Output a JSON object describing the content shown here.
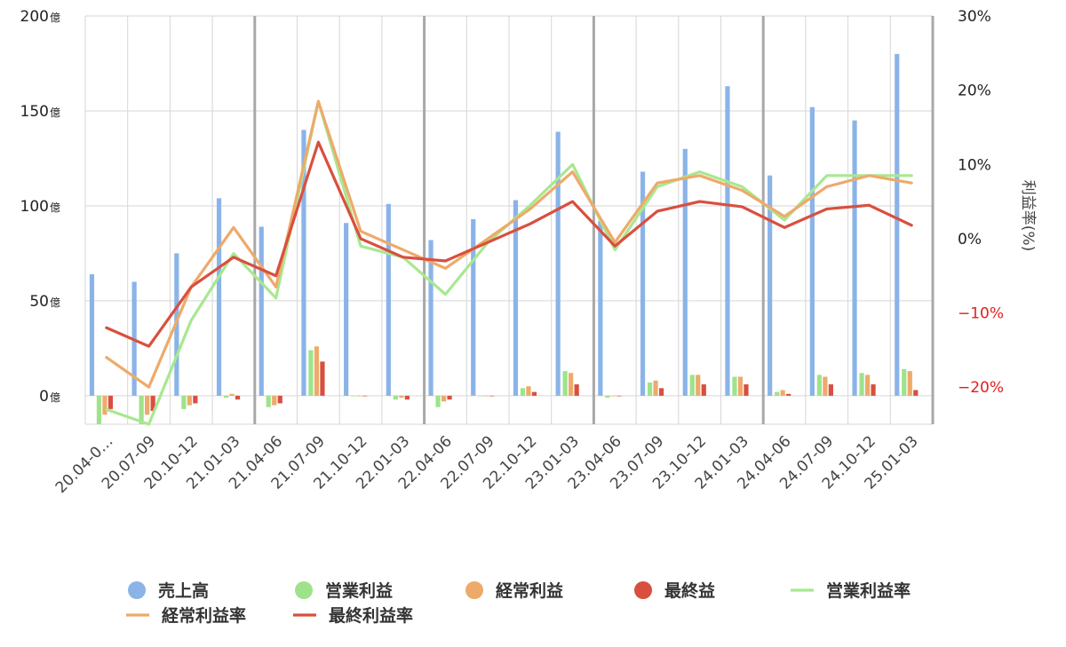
{
  "chart_data": {
    "type": "bar+line",
    "y_axis_left": {
      "ticks": [
        {
          "value": 200,
          "num": "200",
          "unit": "億"
        },
        {
          "value": 150,
          "num": "150",
          "unit": "億"
        },
        {
          "value": 100,
          "num": "100",
          "unit": "億"
        },
        {
          "value": 50,
          "num": "50",
          "unit": "億"
        },
        {
          "value": 0,
          "num": "0",
          "unit": "億"
        }
      ],
      "range": [
        -15,
        200
      ]
    },
    "y_axis_right": {
      "label": "利益率(%)",
      "ticks": [
        {
          "value": 30,
          "label": "30%",
          "color": "#222222"
        },
        {
          "value": 20,
          "label": "20%",
          "color": "#222222"
        },
        {
          "value": 10,
          "label": "10%",
          "color": "#222222"
        },
        {
          "value": 0,
          "label": "0%",
          "color": "#222222"
        },
        {
          "value": -10,
          "label": "−10%",
          "color": "#e02020"
        },
        {
          "value": -20,
          "label": "−20%",
          "color": "#e02020"
        }
      ],
      "range": [
        -25,
        30
      ]
    },
    "categories": [
      "20.04-0…",
      "20.07-09",
      "20.10-12",
      "21.01-03",
      "21.04-06",
      "21.07-09",
      "21.10-12",
      "22.01-03",
      "22.04-06",
      "22.07-09",
      "22.10-12",
      "23.01-03",
      "23.04-06",
      "23.07-09",
      "23.10-12",
      "24.01-03",
      "24.04-06",
      "24.07-09",
      "24.10-12",
      "25.01-03"
    ],
    "bar_series": [
      {
        "name": "売上高",
        "color": "#8ab4e8",
        "values": [
          64,
          60,
          75,
          104,
          89,
          140,
          91,
          101,
          82,
          93,
          103,
          139,
          92,
          118,
          130,
          163,
          116,
          152,
          145,
          180
        ]
      },
      {
        "name": "営業利益",
        "color": "#9ee38c",
        "values": [
          -15,
          -15,
          -7,
          -1,
          -6,
          24,
          0,
          -2,
          -6,
          0,
          4,
          13,
          -1,
          7,
          11,
          10,
          2,
          11,
          12,
          14
        ]
      },
      {
        "name": "経常利益",
        "color": "#eeaa6a",
        "values": [
          -10,
          -10,
          -5,
          1,
          -5,
          26,
          0,
          -1,
          -3,
          0,
          5,
          12,
          0,
          8,
          11,
          10,
          3,
          10,
          11,
          13
        ]
      },
      {
        "name": "最終益",
        "color": "#d94f3f",
        "values": [
          -7,
          -8,
          -4,
          -2,
          -4,
          18,
          0,
          -2,
          -2,
          0,
          2,
          6,
          0,
          4,
          6,
          6,
          1,
          6,
          6,
          3
        ]
      }
    ],
    "line_series": [
      {
        "name": "営業利益率",
        "color": "#a8e890",
        "values": [
          -23,
          -25,
          -11,
          -2,
          -8,
          18.5,
          -1,
          -2.5,
          -7.5,
          -0.5,
          4.5,
          10,
          -1.5,
          7,
          9,
          7,
          2.5,
          8.5,
          8.5,
          8.5
        ]
      },
      {
        "name": "経常利益率",
        "color": "#eeaa6a",
        "values": [
          -16,
          -20,
          -6.5,
          1.5,
          -6.5,
          18.5,
          1,
          -1.5,
          -4,
          0,
          4,
          9,
          -0.5,
          7.5,
          8.5,
          6.5,
          3,
          7,
          8.5,
          7.5
        ]
      },
      {
        "name": "最終利益率",
        "color": "#d94f3f",
        "values": [
          -12,
          -14.5,
          -6.5,
          -2.5,
          -5,
          13,
          0,
          -2.5,
          -3,
          -0.5,
          2,
          5,
          -1,
          3.7,
          5,
          4.3,
          1.5,
          4,
          4.5,
          1.8
        ]
      }
    ],
    "grid": true,
    "legend_position": "bottom"
  }
}
